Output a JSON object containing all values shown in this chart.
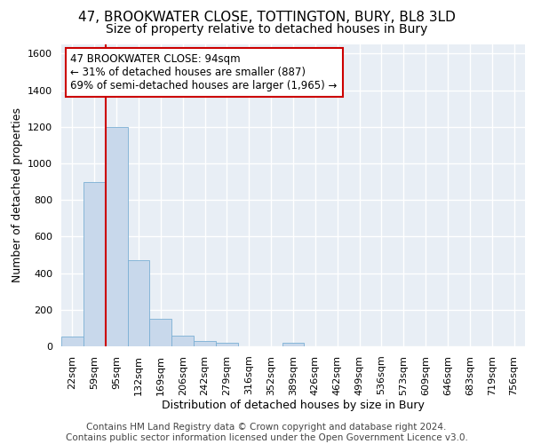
{
  "title_line1": "47, BROOKWATER CLOSE, TOTTINGTON, BURY, BL8 3LD",
  "title_line2": "Size of property relative to detached houses in Bury",
  "xlabel": "Distribution of detached houses by size in Bury",
  "ylabel": "Number of detached properties",
  "categories": [
    "22sqm",
    "59sqm",
    "95sqm",
    "132sqm",
    "169sqm",
    "206sqm",
    "242sqm",
    "279sqm",
    "316sqm",
    "352sqm",
    "389sqm",
    "426sqm",
    "462sqm",
    "499sqm",
    "536sqm",
    "573sqm",
    "609sqm",
    "646sqm",
    "683sqm",
    "719sqm",
    "756sqm"
  ],
  "values": [
    55,
    900,
    1200,
    470,
    150,
    60,
    30,
    20,
    0,
    0,
    20,
    0,
    0,
    0,
    0,
    0,
    0,
    0,
    0,
    0,
    0
  ],
  "bar_color": "#c8d8eb",
  "bar_edge_color": "#7aafd4",
  "vline_color": "#cc0000",
  "vline_x": 1.5,
  "annotation_text": "47 BROOKWATER CLOSE: 94sqm\n← 31% of detached houses are smaller (887)\n69% of semi-detached houses are larger (1,965) →",
  "annotation_box_color": "#ffffff",
  "annotation_box_edge_color": "#cc0000",
  "ylim": [
    0,
    1650
  ],
  "yticks": [
    0,
    200,
    400,
    600,
    800,
    1000,
    1200,
    1400,
    1600
  ],
  "footer_text": "Contains HM Land Registry data © Crown copyright and database right 2024.\nContains public sector information licensed under the Open Government Licence v3.0.",
  "bg_color": "#e8eef5",
  "grid_color": "#ffffff",
  "title_fontsize": 11,
  "subtitle_fontsize": 10,
  "axis_label_fontsize": 9,
  "tick_fontsize": 8,
  "annotation_fontsize": 8.5,
  "footer_fontsize": 7.5
}
